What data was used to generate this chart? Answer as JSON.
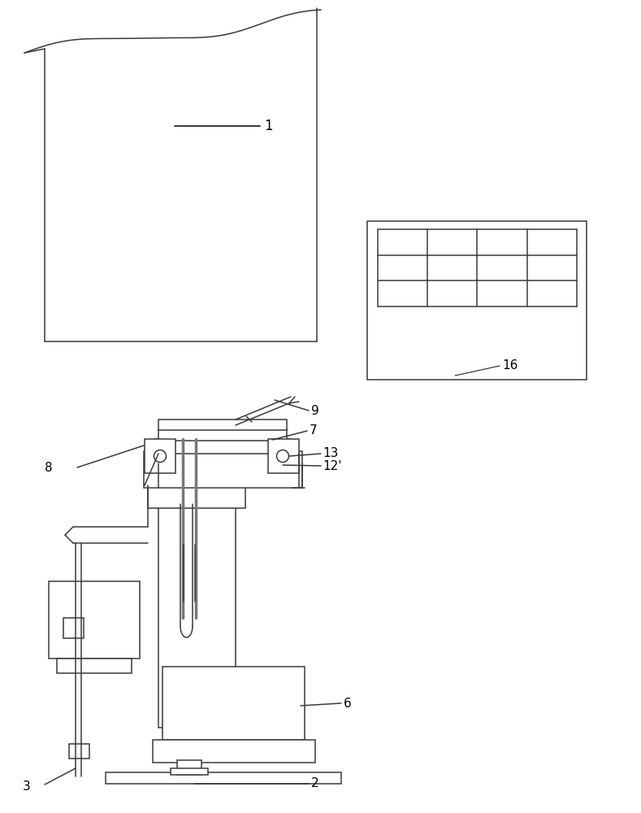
{
  "background_color": "#ffffff",
  "line_color": "#3a3a3a",
  "line_width": 1.1,
  "figsize": [
    7.89,
    10.0
  ],
  "dpi": 100
}
